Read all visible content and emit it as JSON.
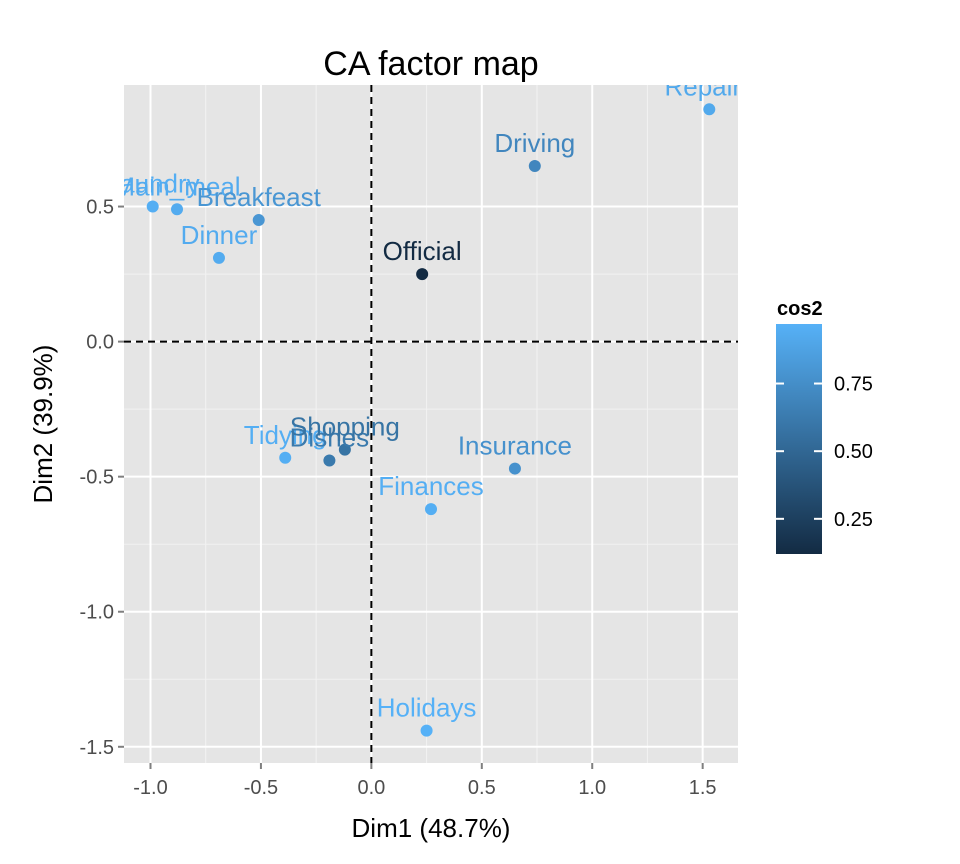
{
  "chart_data": {
    "type": "scatter",
    "title": "CA factor map",
    "xlabel": "Dim1 (48.7%)",
    "ylabel": "Dim2 (39.9%)",
    "xlim": [
      -1.12,
      1.66
    ],
    "ylim": [
      -1.56,
      0.95
    ],
    "xticks": [
      -1.0,
      -0.5,
      0.0,
      0.5,
      1.0,
      1.5
    ],
    "xtick_labels": [
      "-1.0",
      "-0.5",
      "0.0",
      "0.5",
      "1.0",
      "1.5"
    ],
    "yticks": [
      -1.5,
      -1.0,
      -0.5,
      0.0,
      0.5
    ],
    "ytick_labels": [
      "-1.5",
      "-1.0",
      "-0.5",
      "0.0",
      "0.5"
    ],
    "grid": true,
    "reference_lines": {
      "x": 0,
      "y": 0,
      "style": "dashed"
    },
    "points": [
      {
        "label": "Laundry",
        "x": -0.99,
        "y": 0.5,
        "cos2": 0.95
      },
      {
        "label": "Main_meal",
        "x": -0.88,
        "y": 0.49,
        "cos2": 0.93
      },
      {
        "label": "Breakfeast",
        "x": -0.51,
        "y": 0.45,
        "cos2": 0.8
      },
      {
        "label": "Dinner",
        "x": -0.69,
        "y": 0.31,
        "cos2": 0.93
      },
      {
        "label": "Driving",
        "x": 0.74,
        "y": 0.65,
        "cos2": 0.7
      },
      {
        "label": "Repairs",
        "x": 1.53,
        "y": 0.86,
        "cos2": 0.92
      },
      {
        "label": "Official",
        "x": 0.23,
        "y": 0.25,
        "cos2": 0.12
      },
      {
        "label": "Tidying",
        "x": -0.39,
        "y": -0.43,
        "cos2": 0.95
      },
      {
        "label": "Dishes",
        "x": -0.19,
        "y": -0.44,
        "cos2": 0.62
      },
      {
        "label": "Shopping",
        "x": -0.12,
        "y": -0.4,
        "cos2": 0.58
      },
      {
        "label": "Insurance",
        "x": 0.65,
        "y": -0.47,
        "cos2": 0.77
      },
      {
        "label": "Finances",
        "x": 0.27,
        "y": -0.62,
        "cos2": 0.95
      },
      {
        "label": "Holidays",
        "x": 0.25,
        "y": -1.44,
        "cos2": 0.97
      }
    ],
    "legend": {
      "title": "cos2",
      "placement": "right",
      "range": [
        0.12,
        0.97
      ],
      "ticks": [
        0.25,
        0.5,
        0.75
      ],
      "tick_labels": [
        "0.25",
        "0.50",
        "0.75"
      ],
      "color_low": "#132b43",
      "color_high": "#56b1f7"
    }
  },
  "colors": {
    "panel_bg": "#e5e5e5",
    "grid_major": "#ffffff",
    "grid_minor": "#f2f2f2"
  }
}
